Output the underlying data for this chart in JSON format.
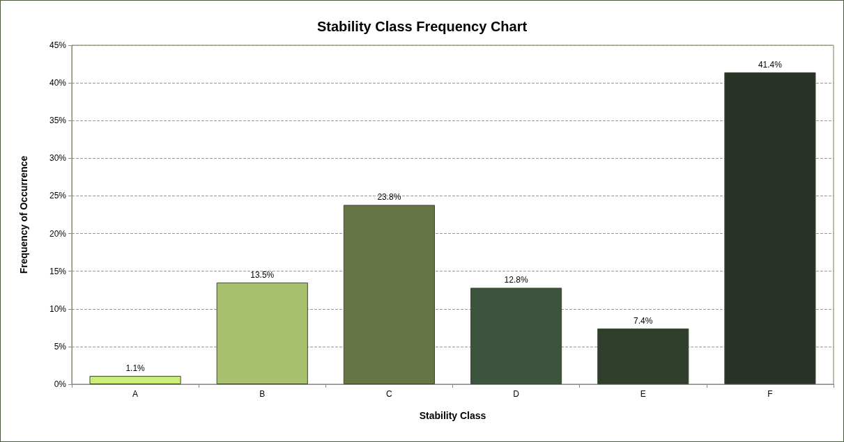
{
  "chart_data": {
    "type": "bar",
    "title": "Stability Class Frequency Chart",
    "xlabel": "Stability Class",
    "ylabel": "Frequency of Occurrence",
    "categories": [
      "A",
      "B",
      "C",
      "D",
      "E",
      "F"
    ],
    "values": [
      1.1,
      13.5,
      23.8,
      12.8,
      7.4,
      41.4
    ],
    "colors": [
      "#ccee77",
      "#a9c16f",
      "#667446",
      "#3c543e",
      "#2f3f2c",
      "#283227"
    ],
    "value_labels": [
      "1.1%",
      "13.5%",
      "23.8%",
      "12.8%",
      "7.4%",
      "41.4%"
    ],
    "ylim": [
      0,
      45
    ],
    "yticks": [
      {
        "value": 0,
        "label": "0%"
      },
      {
        "value": 5,
        "label": "5%"
      },
      {
        "value": 10,
        "label": "10%"
      },
      {
        "value": 15,
        "label": "15%"
      },
      {
        "value": 20,
        "label": "20%"
      },
      {
        "value": 25,
        "label": "25%"
      },
      {
        "value": 30,
        "label": "30%"
      },
      {
        "value": 35,
        "label": "35%"
      },
      {
        "value": 40,
        "label": "40%"
      },
      {
        "value": 45,
        "label": "45%"
      }
    ],
    "grid": "y"
  }
}
